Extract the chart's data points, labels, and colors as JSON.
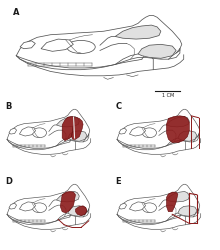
{
  "background_color": "#ffffff",
  "label_color": "#1a1a1a",
  "skull_line_color": "#555555",
  "muscle_color": "#8B1A1A",
  "muscle_alpha": 0.9,
  "scale_bar_text": "1 CM",
  "panel_labels": [
    "A",
    "B",
    "C",
    "D",
    "E"
  ],
  "panel_label_fontsize": 6,
  "panel_label_weight": "bold",
  "fig_width": 2.2,
  "fig_height": 2.5,
  "dpi": 100,
  "skull_lw": 0.55
}
